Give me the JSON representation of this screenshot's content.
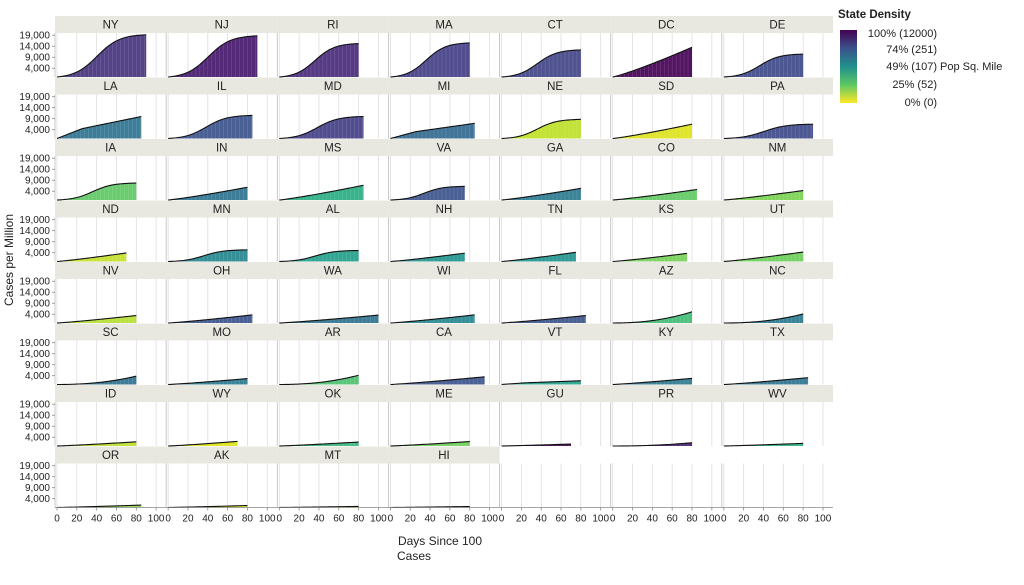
{
  "chart_data": {
    "type": "area",
    "facet_by": "state",
    "columns": 7,
    "xlabel_line1": "Days Since 100",
    "xlabel_line2": "Cases",
    "ylabel": "Cases per Million",
    "xlim": [
      0,
      100
    ],
    "x_ticks": [
      "0",
      "20",
      "40",
      "60",
      "80",
      "100"
    ],
    "ylim": [
      0,
      20000
    ],
    "y_ticks": [
      {
        "v": 4000,
        "label": "4,000"
      },
      {
        "v": 9000,
        "label": "9,000"
      },
      {
        "v": 14000,
        "label": "14,000"
      },
      {
        "v": 19000,
        "label": "19,000"
      }
    ],
    "grid": "vertical",
    "legend": {
      "title": "State Density",
      "position": "top-right",
      "unit_label": "Pop Sq. Mile",
      "entries": [
        "100% (12000)",
        "74% (251)",
        "49% (107)",
        "25% (52)",
        "0% (0)"
      ],
      "gradient": [
        "#440154",
        "#3b528b",
        "#21908d",
        "#5dc863",
        "#fde725"
      ]
    },
    "facets": [
      {
        "state": "NY",
        "days": 90,
        "final": 19200,
        "color": "#46337e",
        "shape": "scurve"
      },
      {
        "state": "NJ",
        "days": 90,
        "final": 18700,
        "color": "#45186d",
        "shape": "scurve"
      },
      {
        "state": "RI",
        "days": 80,
        "final": 15200,
        "color": "#482979",
        "shape": "scurve"
      },
      {
        "state": "MA",
        "days": 80,
        "final": 15500,
        "color": "#433e85",
        "shape": "scurve"
      },
      {
        "state": "CT",
        "days": 80,
        "final": 12300,
        "color": "#414487",
        "shape": "scurve"
      },
      {
        "state": "DC",
        "days": 80,
        "final": 13500,
        "color": "#440154",
        "shape": "linear"
      },
      {
        "state": "DE",
        "days": 80,
        "final": 10400,
        "color": "#3e4a89",
        "shape": "scurve"
      },
      {
        "state": "LA",
        "days": 85,
        "final": 10000,
        "color": "#2c728e",
        "shape": "early"
      },
      {
        "state": "IL",
        "days": 85,
        "final": 10500,
        "color": "#3b528b",
        "shape": "scurve"
      },
      {
        "state": "MD",
        "days": 85,
        "final": 10000,
        "color": "#433e85",
        "shape": "scurve"
      },
      {
        "state": "MI",
        "days": 85,
        "final": 6900,
        "color": "#31688e",
        "shape": "early"
      },
      {
        "state": "NE",
        "days": 80,
        "final": 8700,
        "color": "#bddf26",
        "shape": "scurve"
      },
      {
        "state": "SD",
        "days": 80,
        "final": 6500,
        "color": "#dde318",
        "shape": "linear"
      },
      {
        "state": "PA",
        "days": 90,
        "final": 6500,
        "color": "#3e4a89",
        "shape": "scurve"
      },
      {
        "state": "IA",
        "days": 80,
        "final": 7700,
        "color": "#5dc863",
        "shape": "scurve"
      },
      {
        "state": "IN",
        "days": 80,
        "final": 5800,
        "color": "#2c728e",
        "shape": "linear"
      },
      {
        "state": "MS",
        "days": 85,
        "final": 6700,
        "color": "#27ad81",
        "shape": "linear"
      },
      {
        "state": "VA",
        "days": 75,
        "final": 6200,
        "color": "#3b528b",
        "shape": "scurve"
      },
      {
        "state": "GA",
        "days": 80,
        "final": 5300,
        "color": "#2a788e",
        "shape": "linear"
      },
      {
        "state": "CO",
        "days": 85,
        "final": 4800,
        "color": "#5ec962",
        "shape": "linear"
      },
      {
        "state": "NM",
        "days": 80,
        "final": 4300,
        "color": "#7ad151",
        "shape": "linear"
      },
      {
        "state": "ND",
        "days": 70,
        "final": 3900,
        "color": "#c2df23",
        "shape": "linear"
      },
      {
        "state": "MN",
        "days": 80,
        "final": 5300,
        "color": "#25858e",
        "shape": "scurve"
      },
      {
        "state": "AL",
        "days": 80,
        "final": 5000,
        "color": "#1f9e89",
        "shape": "scurve"
      },
      {
        "state": "NH",
        "days": 75,
        "final": 3800,
        "color": "#20928c",
        "shape": "linear"
      },
      {
        "state": "TN",
        "days": 75,
        "final": 4200,
        "color": "#21918c",
        "shape": "linear"
      },
      {
        "state": "KS",
        "days": 75,
        "final": 3700,
        "color": "#73d056",
        "shape": "linear"
      },
      {
        "state": "UT",
        "days": 80,
        "final": 4300,
        "color": "#6ccd5a",
        "shape": "linear"
      },
      {
        "state": "NV",
        "days": 80,
        "final": 3400,
        "color": "#b5de2b",
        "shape": "linear"
      },
      {
        "state": "OH",
        "days": 85,
        "final": 3700,
        "color": "#3b528b",
        "shape": "linear"
      },
      {
        "state": "WA",
        "days": 100,
        "final": 3600,
        "color": "#2c728e",
        "shape": "linear"
      },
      {
        "state": "WI",
        "days": 85,
        "final": 3700,
        "color": "#25858e",
        "shape": "linear"
      },
      {
        "state": "FL",
        "days": 85,
        "final": 3400,
        "color": "#3b528b",
        "shape": "linear"
      },
      {
        "state": "AZ",
        "days": 80,
        "final": 5100,
        "color": "#3fbc73",
        "shape": "late"
      },
      {
        "state": "NC",
        "days": 80,
        "final": 4100,
        "color": "#2a788e",
        "shape": "late"
      },
      {
        "state": "SC",
        "days": 80,
        "final": 3800,
        "color": "#2c728e",
        "shape": "late"
      },
      {
        "state": "MO",
        "days": 80,
        "final": 2700,
        "color": "#2a788e",
        "shape": "linear"
      },
      {
        "state": "AR",
        "days": 80,
        "final": 4200,
        "color": "#4ac16d",
        "shape": "late"
      },
      {
        "state": "CA",
        "days": 95,
        "final": 3500,
        "color": "#3b528b",
        "shape": "linear"
      },
      {
        "state": "VT",
        "days": 80,
        "final": 1700,
        "color": "#1f9e89",
        "shape": "early"
      },
      {
        "state": "KY",
        "days": 80,
        "final": 2800,
        "color": "#2a788e",
        "shape": "linear"
      },
      {
        "state": "TX",
        "days": 85,
        "final": 3100,
        "color": "#2c728e",
        "shape": "linear"
      },
      {
        "state": "ID",
        "days": 80,
        "final": 1900,
        "color": "#bddf26",
        "shape": "linear"
      },
      {
        "state": "WY",
        "days": 70,
        "final": 2100,
        "color": "#dde318",
        "shape": "linear"
      },
      {
        "state": "OK",
        "days": 80,
        "final": 1800,
        "color": "#35b779",
        "shape": "linear"
      },
      {
        "state": "ME",
        "days": 80,
        "final": 2000,
        "color": "#6ece58",
        "shape": "linear"
      },
      {
        "state": "GU",
        "days": 70,
        "final": 900,
        "color": "#440154",
        "shape": "linear"
      },
      {
        "state": "PR",
        "days": 80,
        "final": 1500,
        "color": "#481f70",
        "shape": "late"
      },
      {
        "state": "WV",
        "days": 80,
        "final": 1200,
        "color": "#2db27d",
        "shape": "linear"
      },
      {
        "state": "OR",
        "days": 85,
        "final": 1100,
        "color": "#8fd744",
        "shape": "linear"
      },
      {
        "state": "AK",
        "days": 80,
        "final": 900,
        "color": "#dce319",
        "shape": "linear"
      },
      {
        "state": "MT",
        "days": 80,
        "final": 500,
        "color": "#fde725",
        "shape": "linear"
      },
      {
        "state": "HI",
        "days": 80,
        "final": 450,
        "color": "#2a788e",
        "shape": "linear"
      }
    ]
  }
}
